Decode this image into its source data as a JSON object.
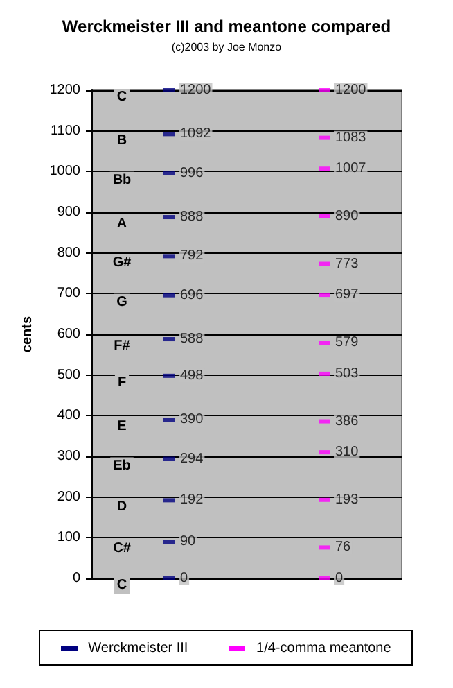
{
  "chart_data": {
    "type": "scatter",
    "title": "Werckmeister III and meantone compared",
    "subtitle": "(c)2003 by Joe Monzo",
    "ylabel": "cents",
    "categories": [
      null,
      null
    ],
    "series": [
      {
        "name": "C",
        "colors": [
          "#000080",
          "#ff00ff"
        ],
        "values": [
          0,
          0
        ]
      },
      {
        "name": "C#",
        "colors": [
          "#000080",
          "#ff00ff"
        ],
        "values": [
          90,
          76
        ]
      },
      {
        "name": "D",
        "colors": [
          "#000080",
          "#ff00ff"
        ],
        "values": [
          192,
          193
        ]
      },
      {
        "name": "Eb",
        "colors": [
          "#000080",
          "#ff00ff"
        ],
        "values": [
          294,
          310
        ]
      },
      {
        "name": "E",
        "colors": [
          "#000080",
          "#ff00ff"
        ],
        "values": [
          390,
          386
        ]
      },
      {
        "name": "F",
        "colors": [
          "#000080",
          "#ff00ff"
        ],
        "values": [
          498,
          503
        ]
      },
      {
        "name": "F#",
        "colors": [
          "#000080",
          "#ff00ff"
        ],
        "values": [
          588,
          579
        ]
      },
      {
        "name": "G",
        "colors": [
          "#000080",
          "#ff00ff"
        ],
        "values": [
          696,
          697
        ]
      },
      {
        "name": "G#",
        "colors": [
          "#000080",
          "#ff00ff"
        ],
        "values": [
          792,
          773
        ]
      },
      {
        "name": "A",
        "colors": [
          "#000080",
          "#ff00ff"
        ],
        "values": [
          888,
          890
        ]
      },
      {
        "name": "Bb",
        "colors": [
          "#000080",
          "#ff00ff"
        ],
        "values": [
          996,
          1007
        ]
      },
      {
        "name": "B",
        "colors": [
          "#000080",
          "#ff00ff"
        ],
        "values": [
          1092,
          1083
        ]
      },
      {
        "name": "C",
        "colors": [
          "#000080",
          "#ff00ff"
        ],
        "values": [
          1200,
          1200
        ]
      }
    ],
    "annotations": [
      "Werckmeister III",
      "1/4-comma meantone"
    ],
    "ylim": [
      0,
      1200
    ],
    "yticks": [
      0,
      100,
      200,
      300,
      400,
      500,
      600,
      700,
      800,
      900,
      1000,
      1100,
      1200
    ],
    "grid": "y",
    "data_labels": true
  }
}
